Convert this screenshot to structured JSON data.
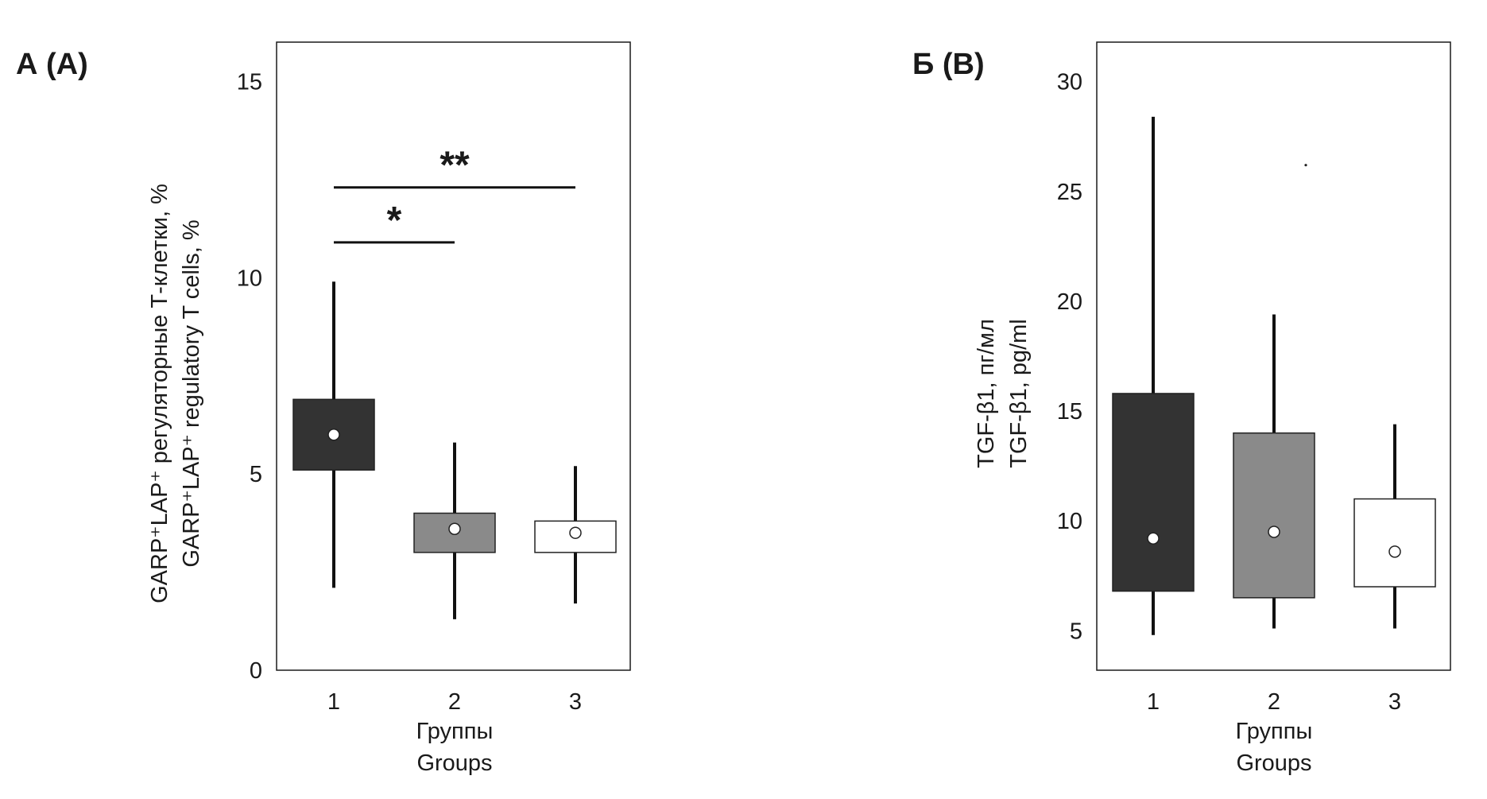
{
  "chart_data": [
    {
      "type": "box",
      "panel_label": "А (A)",
      "ylabel": [
        "GARP⁺LAP⁺ регуляторные Т-клетки, %",
        "GARP⁺LAP⁺ regulatory T cells, %"
      ],
      "xlabel": [
        "Группы",
        "Groups"
      ],
      "categories": [
        "1",
        "2",
        "3"
      ],
      "ylim": [
        0,
        16
      ],
      "yticks": [
        "0",
        "5",
        "10",
        "15"
      ],
      "ytick_values": [
        0,
        5,
        10,
        15
      ],
      "colors": [
        "#333333",
        "#8a8a8a",
        "#ffffff"
      ],
      "boxes": [
        {
          "group": "1",
          "whisker_low": 2.1,
          "q1": 5.1,
          "median": 6.0,
          "q3": 6.9,
          "whisker_high": 9.9
        },
        {
          "group": "2",
          "whisker_low": 1.3,
          "q1": 3.0,
          "median": 3.6,
          "q3": 4.0,
          "whisker_high": 5.8
        },
        {
          "group": "3",
          "whisker_low": 1.7,
          "q1": 3.0,
          "median": 3.5,
          "q3": 3.8,
          "whisker_high": 5.2
        }
      ],
      "significance": [
        {
          "from": "1",
          "to": "2",
          "label": "*",
          "y": 10.9
        },
        {
          "from": "1",
          "to": "3",
          "label": "**",
          "y": 12.3
        }
      ]
    },
    {
      "type": "box",
      "panel_label": "Б (B)",
      "ylabel": [
        "TGF-β1, пг/мл",
        "TGF-β1, pg/ml"
      ],
      "xlabel": [
        "Группы",
        "Groups"
      ],
      "categories": [
        "1",
        "2",
        "3"
      ],
      "ylim": [
        3.2,
        31.8
      ],
      "yticks": [
        "5",
        "10",
        "15",
        "20",
        "25",
        "30"
      ],
      "ytick_values": [
        5,
        10,
        15,
        20,
        25,
        30
      ],
      "colors": [
        "#333333",
        "#8a8a8a",
        "#ffffff"
      ],
      "boxes": [
        {
          "group": "1",
          "whisker_low": 4.8,
          "q1": 6.8,
          "median": 9.2,
          "q3": 15.8,
          "whisker_high": 28.4
        },
        {
          "group": "2",
          "whisker_low": 5.1,
          "q1": 6.5,
          "median": 9.5,
          "q3": 14.0,
          "whisker_high": 19.4
        },
        {
          "group": "3",
          "whisker_low": 5.1,
          "q1": 7.0,
          "median": 8.6,
          "q3": 11.0,
          "whisker_high": 14.4
        }
      ],
      "outliers": [
        {
          "group": "2",
          "value": 26.2
        }
      ]
    }
  ]
}
